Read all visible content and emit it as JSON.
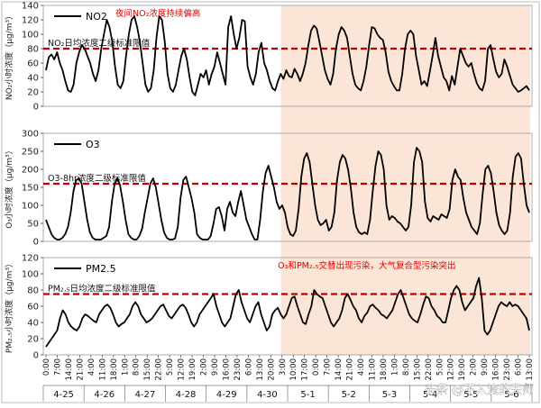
{
  "chart_data": {
    "type": "line",
    "x_tick_labels": [
      "0:00",
      "7:00",
      "14:00",
      "21:00",
      "4:00",
      "11:00",
      "18:00",
      "1:00",
      "8:00",
      "15:00",
      "22:00",
      "5:00",
      "12:00",
      "19:00",
      "2:00",
      "9:00",
      "16:00",
      "23:00",
      "6:00",
      "13:00",
      "20:00",
      "3:00",
      "10:00",
      "17:00",
      "0:00",
      "7:00",
      "14:00",
      "21:00",
      "4:00",
      "11:00",
      "18:00",
      "1:00",
      "8:00",
      "15:00",
      "22:00",
      "5:00",
      "12:00",
      "19:00",
      "2:00",
      "9:00",
      "16:00",
      "23:00",
      "6:00",
      "13:00"
    ],
    "dates": [
      "4-25",
      "4-26",
      "4-27",
      "4-28",
      "4-29",
      "4-30",
      "5-1",
      "5-2",
      "5-3",
      "5-4",
      "5-5",
      "5-6"
    ],
    "highlight_period": [
      "4-30 20:00",
      "5-6 13:00"
    ],
    "highlight_color": "#fbe5d6",
    "panels": [
      {
        "id": "no2",
        "legend": "NO2",
        "ylabel": "NO₂小时浓度（μg/m³）",
        "ylim": [
          0,
          140
        ],
        "yticks": [
          0,
          20,
          40,
          60,
          80,
          100,
          120,
          140
        ],
        "threshold": 80,
        "threshold_label": "NO₂日均浓度二级标准限值",
        "annotation": "夜间NO₂浓度持续偏高",
        "series": [
          50,
          68,
          72,
          65,
          75,
          60,
          50,
          35,
          22,
          20,
          30,
          60,
          75,
          85,
          80,
          70,
          60,
          45,
          35,
          50,
          80,
          100,
          120,
          110,
          90,
          55,
          30,
          25,
          35,
          70,
          100,
          120,
          125,
          110,
          90,
          60,
          30,
          20,
          25,
          50,
          95,
          125,
          120,
          90,
          45,
          25,
          20,
          30,
          50,
          70,
          80,
          65,
          40,
          20,
          15,
          30,
          45,
          40,
          50,
          30,
          45,
          55,
          75,
          60,
          45,
          30,
          110,
          125,
          100,
          80,
          95,
          120,
          118,
          55,
          40,
          30,
          45,
          75,
          88,
          60,
          50,
          35,
          25,
          22,
          35,
          45,
          38,
          50,
          42,
          40,
          52,
          45,
          35,
          45,
          60,
          85,
          105,
          112,
          108,
          90,
          70,
          50,
          38,
          30,
          45,
          80,
          100,
          110,
          105,
          95,
          70,
          45,
          30,
          25,
          22,
          35,
          55,
          85,
          110,
          108,
          100,
          95,
          92,
          75,
          48,
          35,
          28,
          22,
          22,
          45,
          80,
          100,
          105,
          100,
          70,
          50,
          30,
          35,
          28,
          48,
          70,
          95,
          70,
          55,
          40,
          35,
          22,
          42,
          30,
          55,
          80,
          70,
          60,
          55,
          60,
          45,
          32,
          25,
          22,
          35,
          80,
          85,
          65,
          48,
          40,
          45,
          65,
          55,
          42,
          30,
          25,
          20,
          22,
          25,
          28,
          22
        ]
      },
      {
        "id": "o3",
        "legend": "O3",
        "ylabel": "O₃小时浓度（μg/m³）",
        "ylim": [
          0,
          300
        ],
        "yticks": [
          0,
          50,
          100,
          150,
          200,
          250,
          300
        ],
        "threshold": 160,
        "threshold_label": "O3-8hr浓度二级标准限值",
        "series": [
          60,
          40,
          20,
          10,
          5,
          5,
          10,
          20,
          40,
          80,
          140,
          170,
          175,
          160,
          110,
          60,
          25,
          10,
          5,
          5,
          5,
          10,
          15,
          40,
          110,
          160,
          175,
          155,
          110,
          60,
          20,
          10,
          5,
          5,
          15,
          35,
          80,
          120,
          160,
          175,
          150,
          105,
          60,
          25,
          10,
          5,
          5,
          8,
          40,
          120,
          170,
          180,
          150,
          120,
          80,
          20,
          10,
          5,
          5,
          5,
          15,
          50,
          90,
          95,
          70,
          30,
          90,
          110,
          80,
          70,
          110,
          140,
          100,
          60,
          40,
          20,
          5,
          5,
          60,
          140,
          190,
          210,
          180,
          150,
          110,
          90,
          100,
          80,
          40,
          20,
          15,
          30,
          90,
          180,
          230,
          245,
          220,
          160,
          100,
          60,
          45,
          50,
          60,
          30,
          40,
          80,
          170,
          220,
          240,
          230,
          200,
          150,
          80,
          40,
          25,
          20,
          25,
          20,
          60,
          140,
          210,
          250,
          240,
          200,
          100,
          60,
          70,
          65,
          55,
          50,
          40,
          30,
          40,
          100,
          220,
          260,
          250,
          220,
          110,
          65,
          55,
          70,
          65,
          60,
          75,
          70,
          65,
          90,
          170,
          200,
          180,
          170,
          120,
          80,
          60,
          40,
          30,
          20,
          50,
          130,
          200,
          210,
          190,
          140,
          80,
          45,
          30,
          20,
          30,
          80,
          180,
          235,
          245,
          230,
          160,
          100,
          80
        ]
      },
      {
        "id": "pm25",
        "legend": "PM2.5",
        "ylabel": "PM₂.₅小时浓度（μg/m³）",
        "ylim": [
          0,
          120
        ],
        "yticks": [
          0,
          20,
          40,
          60,
          80,
          100,
          120
        ],
        "threshold": 75,
        "threshold_label": "PM₂.₅日均浓度二级标准限值",
        "annotation": "O₃和PM₂.₅交替出现污染，大气复合型污染突出",
        "series": [
          10,
          15,
          20,
          25,
          30,
          45,
          55,
          50,
          40,
          35,
          32,
          30,
          35,
          45,
          50,
          48,
          45,
          42,
          40,
          50,
          55,
          60,
          62,
          58,
          50,
          40,
          35,
          38,
          40,
          45,
          50,
          60,
          65,
          60,
          50,
          45,
          40,
          42,
          45,
          50,
          55,
          60,
          62,
          55,
          48,
          45,
          50,
          55,
          60,
          62,
          58,
          50,
          40,
          35,
          40,
          50,
          55,
          60,
          65,
          70,
          75,
          60,
          50,
          40,
          35,
          40,
          45,
          60,
          75,
          80,
          65,
          55,
          45,
          40,
          50,
          60,
          65,
          50,
          40,
          30,
          35,
          50,
          55,
          58,
          50,
          45,
          50,
          60,
          70,
          72,
          60,
          50,
          40,
          38,
          50,
          60,
          80,
          75,
          72,
          70,
          60,
          50,
          40,
          35,
          40,
          45,
          55,
          70,
          75,
          68,
          60,
          55,
          45,
          40,
          48,
          52,
          60,
          62,
          58,
          55,
          50,
          48,
          45,
          50,
          55,
          65,
          75,
          80,
          70,
          60,
          50,
          45,
          42,
          40,
          50,
          62,
          72,
          70,
          60,
          55,
          48,
          45,
          40,
          40,
          55,
          70,
          80,
          85,
          80,
          65,
          55,
          60,
          65,
          70,
          85,
          95,
          70,
          30,
          25,
          30,
          40,
          50,
          60,
          65,
          62,
          60,
          65,
          60,
          62,
          60,
          55,
          50,
          45,
          30
        ]
      }
    ]
  },
  "watermark": "头条 @不入流的天师"
}
